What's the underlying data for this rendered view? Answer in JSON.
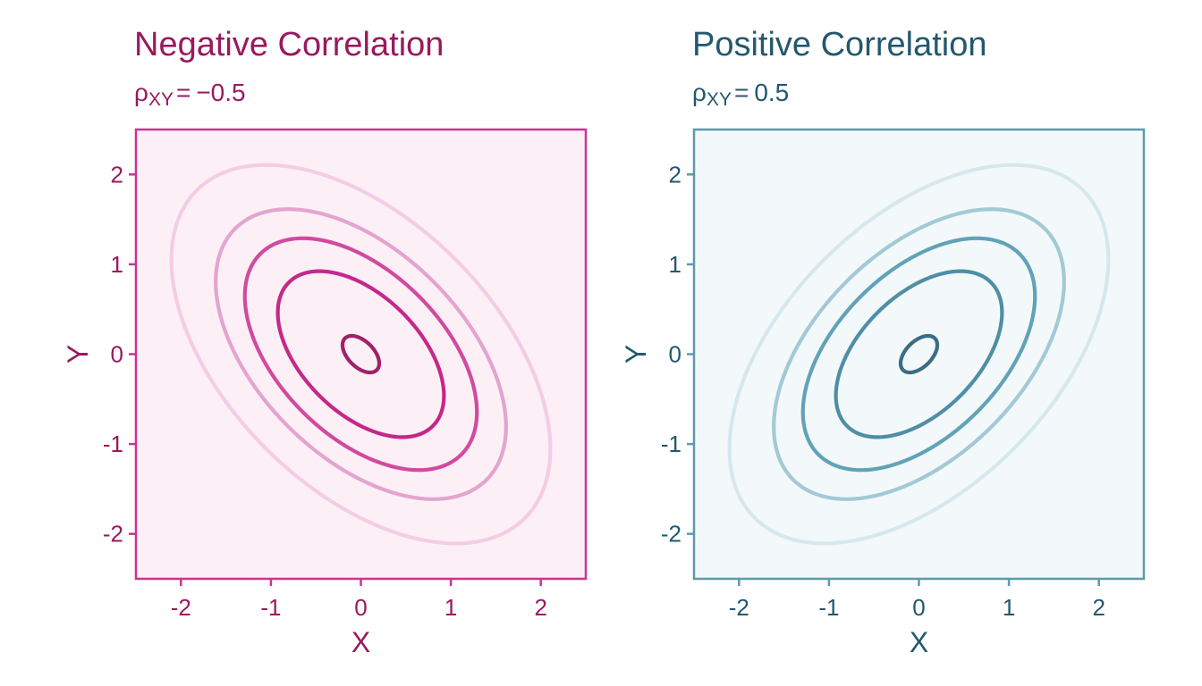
{
  "chart_data": [
    {
      "type": "contour",
      "title": "Negative Correlation",
      "subtitle": {
        "symbol": "ρ",
        "subscript": "XY",
        "equals": "=",
        "value_text": "−0.5"
      },
      "rho": -0.5,
      "xlabel": "X",
      "ylabel": "Y",
      "xlim": [
        -2.5,
        2.5
      ],
      "ylim": [
        -2.5,
        2.5
      ],
      "xticks": [
        -2,
        -1,
        0,
        1,
        2
      ],
      "yticks": [
        -2,
        -1,
        0,
        1,
        2
      ],
      "xtick_labels": [
        "-2",
        "-1",
        "0",
        "1",
        "2"
      ],
      "ytick_labels": [
        "-2",
        "-1",
        "0",
        "1",
        "2"
      ],
      "contour_levels": [
        0.18,
        0.12,
        0.08,
        0.05,
        0.02
      ],
      "colors": {
        "title": "#99195e",
        "frame": "#cc3393",
        "panel_bg": "#fcf0f6",
        "tick_text": "#99195e",
        "tick_mark": "#cc3393",
        "contours": [
          "#a0216a",
          "#c4288a",
          "#d14aa0",
          "#e4a4cf",
          "#f3cde4"
        ]
      }
    },
    {
      "type": "contour",
      "title": "Positive Correlation",
      "subtitle": {
        "symbol": "ρ",
        "subscript": "XY",
        "equals": "=",
        "value_text": "0.5"
      },
      "rho": 0.5,
      "xlabel": "X",
      "ylabel": "Y",
      "xlim": [
        -2.5,
        2.5
      ],
      "ylim": [
        -2.5,
        2.5
      ],
      "xticks": [
        -2,
        -1,
        0,
        1,
        2
      ],
      "yticks": [
        -2,
        -1,
        0,
        1,
        2
      ],
      "xtick_labels": [
        "-2",
        "-1",
        "0",
        "1",
        "2"
      ],
      "ytick_labels": [
        "-2",
        "-1",
        "0",
        "1",
        "2"
      ],
      "contour_levels": [
        0.18,
        0.12,
        0.08,
        0.05,
        0.02
      ],
      "colors": {
        "title": "#23586e",
        "frame": "#5b9aae",
        "panel_bg": "#f3f9fa",
        "tick_text": "#23586e",
        "tick_mark": "#5b9aae",
        "contours": [
          "#3c6c84",
          "#4f8ea6",
          "#62a2b8",
          "#a2c9d6",
          "#d6e8ee"
        ]
      }
    }
  ]
}
